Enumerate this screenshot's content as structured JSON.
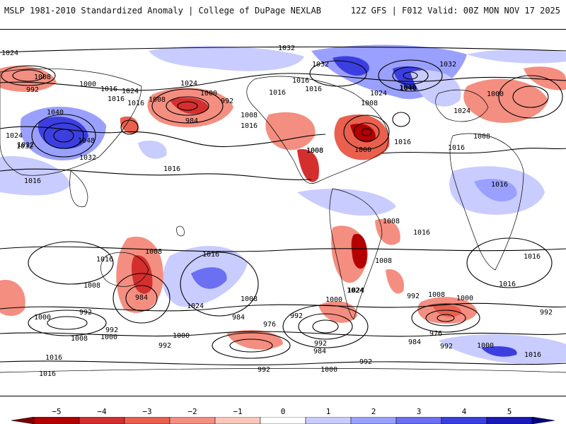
{
  "header": {
    "left": "MSLP 1981-2010 Standardized Anomaly | College of DuPage NEXLAB",
    "right": "12Z GFS | F012 Valid: 00Z MON NOV 17 2025"
  },
  "map": {
    "isobar_labels": [
      "1024",
      "1032",
      "992",
      "1008",
      "1000",
      "1016",
      "1024",
      "1016",
      "1024",
      "1008",
      "1000",
      "992",
      "984",
      "1008",
      "1016",
      "1016",
      "1016",
      "1032",
      "1016",
      "1024",
      "1040",
      "1008",
      "1000",
      "1016",
      "1008",
      "1032",
      "1032",
      "1040",
      "1000",
      "1024",
      "1016",
      "1008",
      "1016",
      "1040",
      "1024",
      "1048",
      "1032",
      "1032",
      "1016",
      "1016",
      "1008",
      "1008",
      "1016",
      "1016",
      "1008",
      "1016",
      "1008",
      "984",
      "1016",
      "1024",
      "992",
      "1000",
      "1008",
      "992",
      "1008",
      "1000",
      "984",
      "976",
      "992",
      "1000",
      "1024",
      "992",
      "1000",
      "992",
      "976",
      "984",
      "992",
      "992",
      "1016",
      "1016",
      "992",
      "1000",
      "1008",
      "1016",
      "1016",
      "1024",
      "992",
      "1008",
      "1000",
      "984",
      "992",
      "1000",
      "1016"
    ]
  },
  "legend": {
    "ticks": [
      "−5",
      "−4",
      "−3",
      "−2",
      "−1",
      "0",
      "1",
      "2",
      "3",
      "4",
      "5"
    ],
    "colors": [
      "#7a0000",
      "#b40000",
      "#d42f2f",
      "#e9604f",
      "#f48e80",
      "#fbc6bc",
      "#ffffff",
      "#c9ccff",
      "#9aa0ff",
      "#6b6ff2",
      "#3c3fe0",
      "#1a1ab8",
      "#000080"
    ]
  }
}
